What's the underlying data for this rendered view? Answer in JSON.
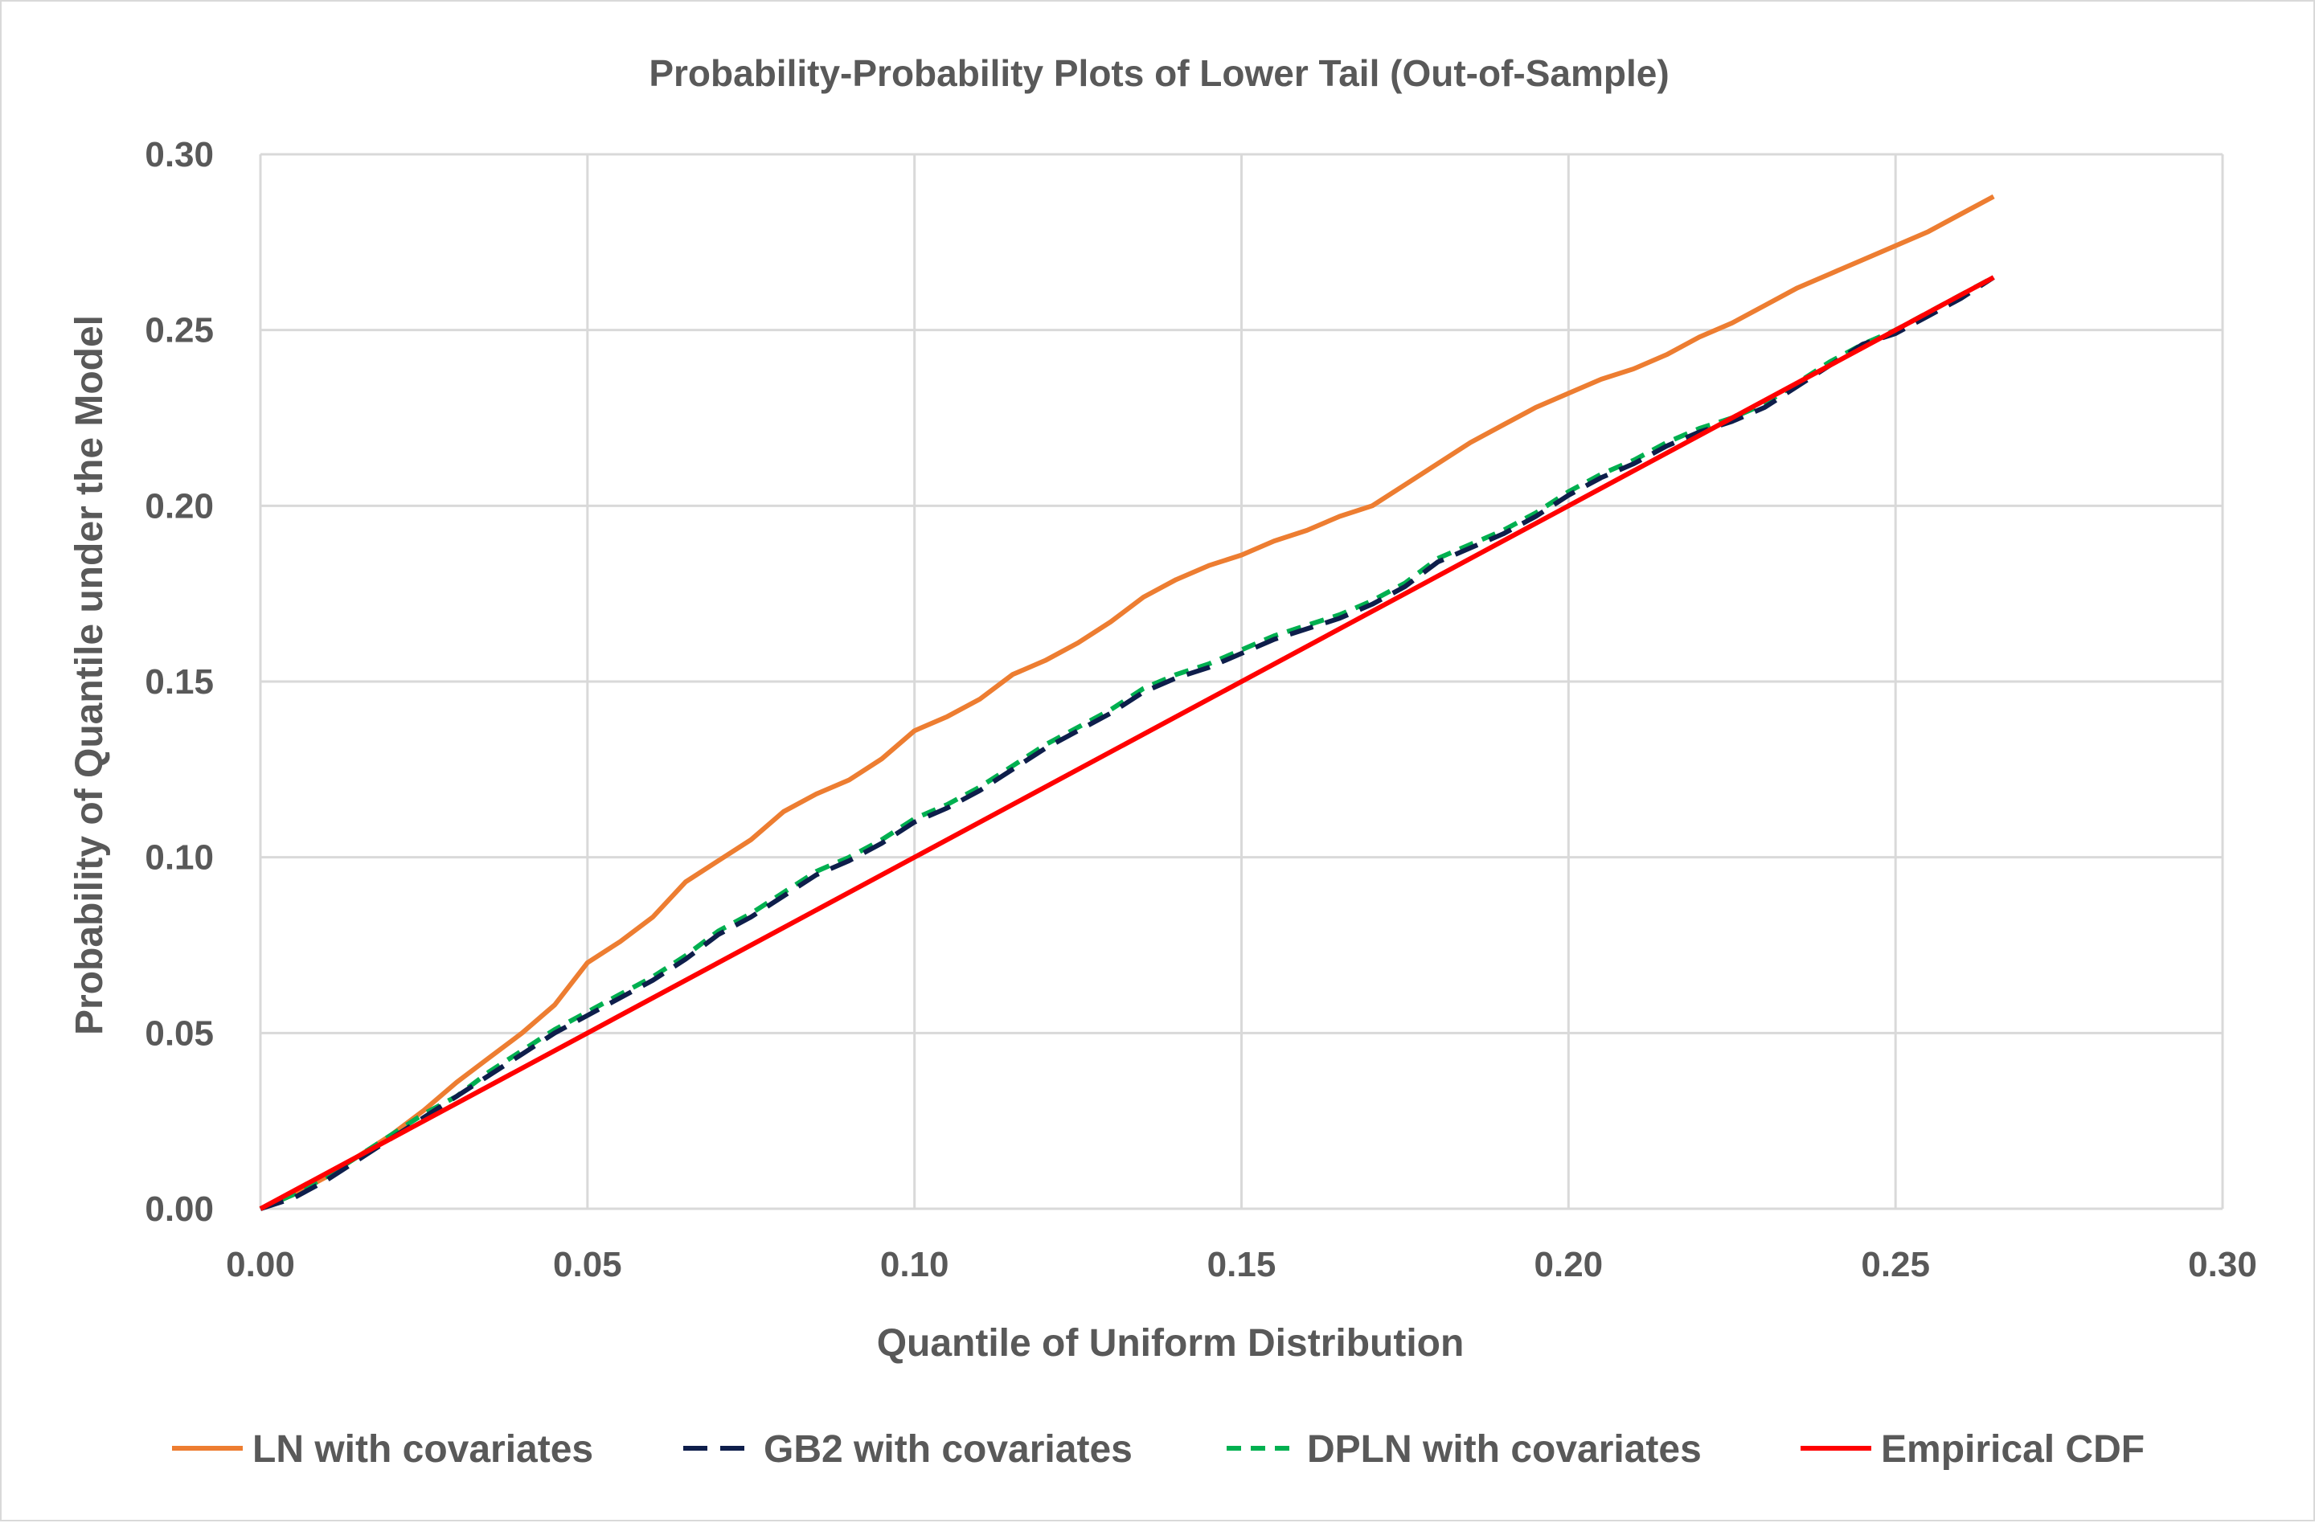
{
  "chart_data": {
    "type": "line",
    "title": "Probability-Probability Plots of Lower Tail (Out-of-Sample)",
    "xlabel": "Quantile of Uniform Distribution",
    "ylabel": "Probability of Quantile under the Model",
    "xlim": [
      0,
      0.3
    ],
    "ylim": [
      0,
      0.3
    ],
    "xticks": [
      "0.00",
      "0.05",
      "0.10",
      "0.15",
      "0.20",
      "0.25",
      "0.30"
    ],
    "yticks": [
      "0.00",
      "0.05",
      "0.10",
      "0.15",
      "0.20",
      "0.25",
      "0.30"
    ],
    "grid": true,
    "legend_position": "bottom",
    "series": [
      {
        "name": "LN with covariates",
        "color": "#ED7D31",
        "style": "solid",
        "x": [
          0.0,
          0.005,
          0.01,
          0.015,
          0.02,
          0.025,
          0.03,
          0.035,
          0.04,
          0.045,
          0.05,
          0.055,
          0.06,
          0.065,
          0.07,
          0.075,
          0.08,
          0.085,
          0.09,
          0.095,
          0.1,
          0.105,
          0.11,
          0.115,
          0.12,
          0.125,
          0.13,
          0.135,
          0.14,
          0.145,
          0.15,
          0.155,
          0.16,
          0.165,
          0.17,
          0.175,
          0.18,
          0.185,
          0.19,
          0.195,
          0.2,
          0.205,
          0.21,
          0.215,
          0.22,
          0.225,
          0.23,
          0.235,
          0.24,
          0.245,
          0.25,
          0.255,
          0.26,
          0.265
        ],
        "y": [
          0.0,
          0.004,
          0.009,
          0.015,
          0.021,
          0.028,
          0.036,
          0.043,
          0.05,
          0.058,
          0.07,
          0.076,
          0.083,
          0.093,
          0.099,
          0.105,
          0.113,
          0.118,
          0.122,
          0.128,
          0.136,
          0.14,
          0.145,
          0.152,
          0.156,
          0.161,
          0.167,
          0.174,
          0.179,
          0.183,
          0.186,
          0.19,
          0.193,
          0.197,
          0.2,
          0.206,
          0.212,
          0.218,
          0.223,
          0.228,
          0.232,
          0.236,
          0.239,
          0.243,
          0.248,
          0.252,
          0.257,
          0.262,
          0.266,
          0.27,
          0.274,
          0.278,
          0.283,
          0.288
        ]
      },
      {
        "name": "GB2 with covariates",
        "color": "#0E1E4B",
        "style": "longdash",
        "x": [
          0.0,
          0.005,
          0.01,
          0.015,
          0.02,
          0.025,
          0.03,
          0.035,
          0.04,
          0.045,
          0.05,
          0.055,
          0.06,
          0.065,
          0.07,
          0.075,
          0.08,
          0.085,
          0.09,
          0.095,
          0.1,
          0.105,
          0.11,
          0.115,
          0.12,
          0.125,
          0.13,
          0.135,
          0.14,
          0.145,
          0.15,
          0.155,
          0.16,
          0.165,
          0.17,
          0.175,
          0.18,
          0.185,
          0.19,
          0.195,
          0.2,
          0.205,
          0.21,
          0.215,
          0.22,
          0.225,
          0.23,
          0.235,
          0.24,
          0.245,
          0.25,
          0.255,
          0.26,
          0.265
        ],
        "y": [
          0.0,
          0.003,
          0.008,
          0.014,
          0.02,
          0.026,
          0.032,
          0.038,
          0.044,
          0.05,
          0.055,
          0.06,
          0.065,
          0.071,
          0.078,
          0.083,
          0.089,
          0.095,
          0.099,
          0.104,
          0.11,
          0.114,
          0.119,
          0.125,
          0.131,
          0.136,
          0.141,
          0.147,
          0.151,
          0.154,
          0.158,
          0.162,
          0.165,
          0.168,
          0.172,
          0.177,
          0.184,
          0.188,
          0.192,
          0.197,
          0.203,
          0.208,
          0.212,
          0.217,
          0.221,
          0.224,
          0.228,
          0.234,
          0.24,
          0.246,
          0.249,
          0.254,
          0.259,
          0.265
        ]
      },
      {
        "name": "DPLN with covariates",
        "color": "#00B050",
        "style": "dash",
        "x": [
          0.0,
          0.005,
          0.01,
          0.015,
          0.02,
          0.025,
          0.03,
          0.035,
          0.04,
          0.045,
          0.05,
          0.055,
          0.06,
          0.065,
          0.07,
          0.075,
          0.08,
          0.085,
          0.09,
          0.095,
          0.1,
          0.105,
          0.11,
          0.115,
          0.12,
          0.125,
          0.13,
          0.135,
          0.14,
          0.145,
          0.15,
          0.155,
          0.16,
          0.165,
          0.17,
          0.175,
          0.18,
          0.185,
          0.19,
          0.195,
          0.2,
          0.205,
          0.21,
          0.215,
          0.22,
          0.225,
          0.23,
          0.235,
          0.24,
          0.245,
          0.25,
          0.255,
          0.26,
          0.265
        ],
        "y": [
          0.0,
          0.004,
          0.009,
          0.015,
          0.021,
          0.027,
          0.032,
          0.039,
          0.045,
          0.051,
          0.056,
          0.061,
          0.066,
          0.072,
          0.079,
          0.084,
          0.09,
          0.096,
          0.1,
          0.105,
          0.111,
          0.115,
          0.12,
          0.126,
          0.132,
          0.137,
          0.142,
          0.148,
          0.152,
          0.155,
          0.159,
          0.163,
          0.166,
          0.169,
          0.173,
          0.178,
          0.185,
          0.189,
          0.193,
          0.198,
          0.204,
          0.209,
          0.213,
          0.218,
          0.222,
          0.225,
          0.229,
          0.235,
          0.241,
          0.246,
          0.25,
          0.255,
          0.26,
          0.265
        ]
      },
      {
        "name": "Empirical CDF",
        "color": "#FF0000",
        "style": "solid",
        "x": [
          0.0,
          0.265
        ],
        "y": [
          0.0,
          0.265
        ]
      }
    ]
  }
}
